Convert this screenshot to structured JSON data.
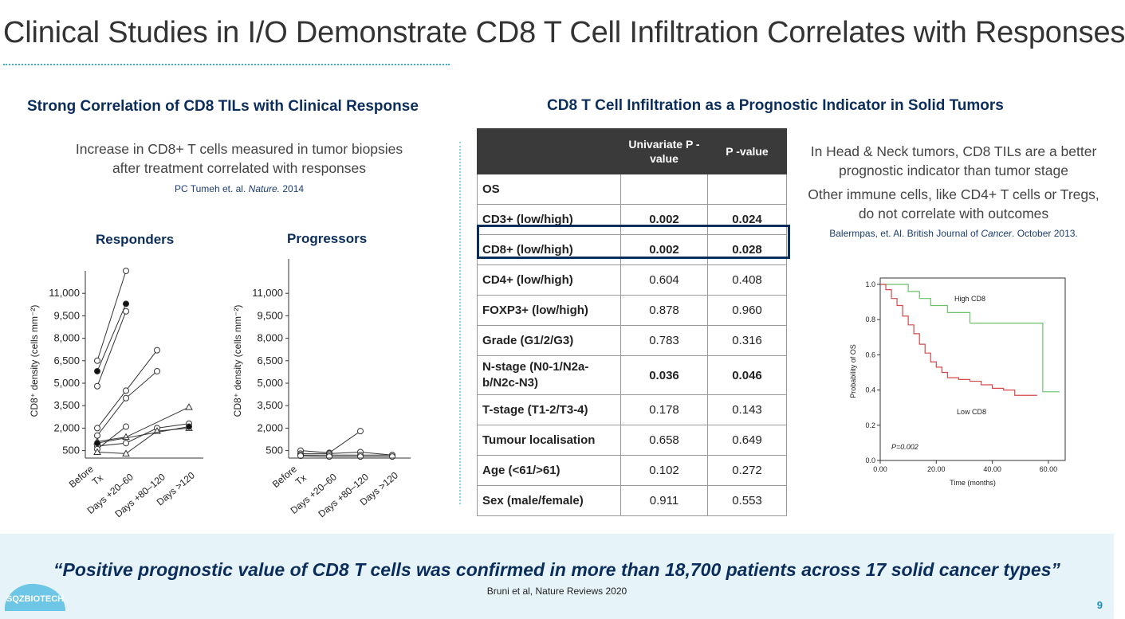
{
  "title": "Clinical Studies in I/O Demonstrate CD8 T Cell Infiltration Correlates with Responses",
  "left": {
    "heading": "Strong Correlation of CD8 TILs with Clinical Response",
    "desc_line1": "Increase in CD8+ T cells measured in tumor biopsies",
    "desc_line2": "after treatment correlated with responses",
    "cite_prefix": "PC Tumeh et. al.",
    "cite_journal": "Nature.",
    "cite_year": "2014",
    "responders": {
      "title": "Responders",
      "ylabel": "CD8⁺ density (cells mm⁻²)",
      "yticks": [
        "11,000",
        "9,500",
        "8,000",
        "6,500",
        "5,000",
        "3,500",
        "2,000",
        "500"
      ],
      "xticks": [
        "Before",
        "Tx",
        "Days +20–60",
        "Days +80–120",
        "Days >120"
      ]
    },
    "progressors": {
      "title": "Progressors",
      "ylabel": "CD8⁺ density (cells mm⁻²)",
      "yticks": [
        "11,000",
        "9,500",
        "8,000",
        "6,500",
        "5,000",
        "3,500",
        "2,000",
        "500"
      ],
      "xticks": [
        "Before",
        "Tx",
        "Days +20–60",
        "Days +80–120",
        "Days >120"
      ]
    }
  },
  "right": {
    "heading": "CD8 T Cell Infiltration as a Prognostic Indicator in Solid Tumors",
    "table": {
      "headers": [
        "",
        "Univariate P -value",
        "P -value"
      ],
      "section": "OS",
      "rows": [
        {
          "label": "CD3+ (low/high)",
          "uni": "0.002",
          "p": "0.024",
          "bold": true
        },
        {
          "label": "CD8+ (low/high)",
          "uni": "0.002",
          "p": "0.028",
          "bold": true
        },
        {
          "label": "CD4+ (low/high)",
          "uni": "0.604",
          "p": "0.408",
          "bold": false
        },
        {
          "label": "FOXP3+ (low/high)",
          "uni": "0.878",
          "p": "0.960",
          "bold": false
        },
        {
          "label": "Grade (G1/2/G3)",
          "uni": "0.783",
          "p": "0.316",
          "bold": false
        },
        {
          "label": "N-stage (N0-1/N2a-b/N2c-N3)",
          "uni": "0.036",
          "p": "0.046",
          "bold": true
        },
        {
          "label": "T-stage (T1-2/T3-4)",
          "uni": "0.178",
          "p": "0.143",
          "bold": false
        },
        {
          "label": "Tumour localisation",
          "uni": "0.658",
          "p": "0.649",
          "bold": false
        },
        {
          "label": "Age (<61/>61)",
          "uni": "0.102",
          "p": "0.272",
          "bold": false
        },
        {
          "label": "Sex (male/female)",
          "uni": "0.911",
          "p": "0.553",
          "bold": false
        }
      ]
    },
    "note1_line1": "In Head & Neck tumors, CD8 TILs are a better",
    "note1_line2": "prognostic indicator than tumor stage",
    "note2_line1": "Other immune cells, like CD4+ T cells or Tregs,",
    "note2_line2": "do not correlate with outcomes",
    "cite_prefix": "Balermpas, et. Al. British Journal of",
    "cite_journal": "Cancer",
    "cite_suffix": ". October 2013.",
    "km": {
      "ylabel": "Probability of OS",
      "xlabel": "Time (months)",
      "yticks": [
        "1.0",
        "0.8",
        "0.6",
        "0.4",
        "0.2",
        "0.0"
      ],
      "xticks": [
        "0.00",
        "20.00",
        "40.00",
        "60.00"
      ],
      "high_label": "High CD8",
      "low_label": "Low CD8",
      "pvalue": "P=0.002",
      "high_color": "#6cc06c",
      "low_color": "#d44a4a"
    }
  },
  "quote": "“Positive prognostic value of CD8 T cells was confirmed in more than 18,700 patients across 17 solid cancer types”",
  "quote_cite": "Bruni et al, Nature Reviews 2020",
  "page_number": "9",
  "logo_text": "SQZBIOTECH",
  "brand_color": "#0b2d5c",
  "accent_color": "#37b3d6",
  "chart_data": [
    {
      "type": "line",
      "title": "Responders",
      "ylabel": "CD8⁺ density (cells mm⁻²)",
      "categories": [
        "Before Tx",
        "Days +20–60",
        "Days +80–120",
        "Days >120"
      ],
      "series": [
        {
          "values": [
            6500,
            12500,
            null,
            null
          ],
          "marker": "open-circle"
        },
        {
          "values": [
            5800,
            10300,
            null,
            null
          ],
          "marker": "filled-circle"
        },
        {
          "values": [
            4800,
            9800,
            null,
            null
          ],
          "marker": "open-circle"
        },
        {
          "values": [
            2000,
            4500,
            7200,
            null
          ],
          "marker": "open-circle"
        },
        {
          "values": [
            1500,
            4000,
            5800,
            null
          ],
          "marker": "open-circle"
        },
        {
          "values": [
            1100,
            1400,
            null,
            3400
          ],
          "marker": "open-triangle"
        },
        {
          "values": [
            800,
            1000,
            2000,
            2300
          ],
          "marker": "open-circle"
        },
        {
          "values": [
            600,
            2100,
            null,
            null
          ],
          "marker": "open-circle"
        },
        {
          "values": [
            400,
            300,
            1800,
            2000
          ],
          "marker": "open-triangle"
        },
        {
          "values": [
            1000,
            null,
            null,
            2100
          ],
          "marker": "filled-circle"
        }
      ],
      "ylim": [
        0,
        12500
      ]
    },
    {
      "type": "line",
      "title": "Progressors",
      "ylabel": "CD8⁺ density (cells mm⁻²)",
      "categories": [
        "Before Tx",
        "Days +20–60",
        "Days +80–120",
        "Days >120"
      ],
      "series": [
        {
          "values": [
            500,
            350,
            1800,
            null
          ]
        },
        {
          "values": [
            300,
            300,
            400,
            200
          ]
        },
        {
          "values": [
            200,
            200,
            200,
            200
          ]
        },
        {
          "values": [
            150,
            100,
            100,
            100
          ]
        }
      ],
      "ylim": [
        0,
        12500
      ]
    },
    {
      "type": "line",
      "title": "",
      "xlabel": "Time (months)",
      "ylabel": "Probability of OS",
      "series": [
        {
          "name": "High CD8",
          "x": [
            0,
            8,
            10,
            12,
            14,
            16,
            18,
            20,
            24,
            28,
            32,
            40,
            48,
            52,
            56,
            58,
            60,
            64
          ],
          "y": [
            1.0,
            1.0,
            0.96,
            0.96,
            0.92,
            0.92,
            0.88,
            0.88,
            0.84,
            0.84,
            0.78,
            0.78,
            0.78,
            0.78,
            0.78,
            0.39,
            0.39,
            0.39
          ]
        },
        {
          "name": "Low CD8",
          "x": [
            0,
            2,
            4,
            6,
            8,
            10,
            12,
            14,
            16,
            18,
            20,
            22,
            24,
            28,
            32,
            36,
            40,
            44,
            48,
            52,
            56
          ],
          "y": [
            1.0,
            0.97,
            0.92,
            0.88,
            0.82,
            0.77,
            0.72,
            0.66,
            0.61,
            0.56,
            0.53,
            0.5,
            0.47,
            0.46,
            0.45,
            0.43,
            0.41,
            0.4,
            0.37,
            0.37,
            0.37
          ]
        }
      ],
      "xlim": [
        0,
        66
      ],
      "ylim": [
        0,
        1.0
      ],
      "annotation": "P=0.002"
    }
  ]
}
